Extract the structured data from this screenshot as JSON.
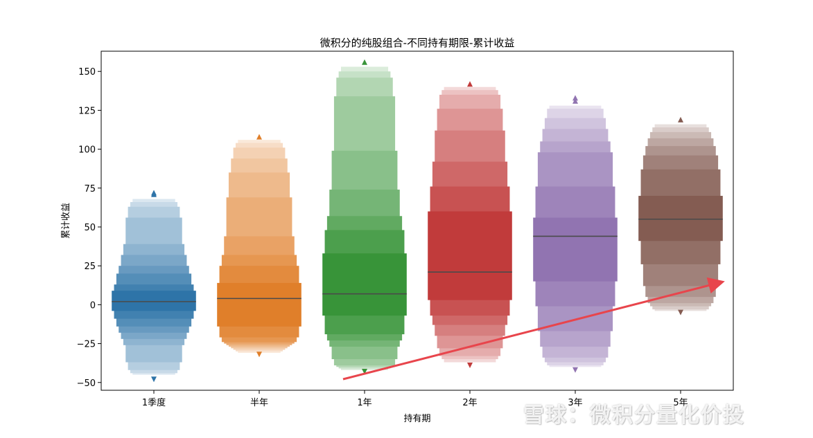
{
  "chart_data": {
    "type": "boxen",
    "title": "微积分的纯股组合-不同持有期限-累计收益",
    "xlabel": "持有期",
    "ylabel": "累计收益",
    "ylim": [
      -55,
      163
    ],
    "yticks": [
      -50,
      -25,
      0,
      25,
      50,
      75,
      100,
      125,
      150
    ],
    "grid": false,
    "categories": [
      "1季度",
      "半年",
      "1年",
      "2年",
      "3年",
      "5年"
    ],
    "colors": [
      "#2e74a8",
      "#e07f2a",
      "#389439",
      "#c13b3b",
      "#9174b1",
      "#845c52"
    ],
    "series": [
      {
        "category": "1季度",
        "median": 2,
        "levels": [
          [
            -4,
            9
          ],
          [
            -9,
            13
          ],
          [
            -14,
            20
          ],
          [
            -18,
            25
          ],
          [
            -22,
            32
          ],
          [
            -26,
            39
          ],
          [
            -37,
            56
          ],
          [
            -42,
            63
          ],
          [
            -44,
            66
          ],
          [
            -45,
            68
          ]
        ],
        "outliers": [
          72,
          71,
          -48
        ]
      },
      {
        "category": "半年",
        "median": 4,
        "levels": [
          [
            -14,
            14
          ],
          [
            -21,
            25
          ],
          [
            -24,
            32
          ],
          [
            -25,
            44
          ],
          [
            -26,
            69
          ],
          [
            -27,
            85
          ],
          [
            -28,
            94
          ],
          [
            -29,
            101
          ],
          [
            -30,
            104
          ],
          [
            -31,
            106
          ]
        ],
        "outliers": [
          108,
          -32
        ]
      },
      {
        "category": "1年",
        "median": 7,
        "levels": [
          [
            -7,
            33
          ],
          [
            -19,
            48
          ],
          [
            -23,
            57
          ],
          [
            -27,
            74
          ],
          [
            -35,
            99
          ],
          [
            -39,
            134
          ],
          [
            -40,
            146
          ],
          [
            -41,
            150
          ],
          [
            -42,
            153
          ]
        ],
        "outliers": [
          156,
          -43
        ]
      },
      {
        "category": "2年",
        "median": 21,
        "levels": [
          [
            3,
            60
          ],
          [
            -7,
            76
          ],
          [
            -13,
            92
          ],
          [
            -20,
            112
          ],
          [
            -28,
            126
          ],
          [
            -33,
            135
          ],
          [
            -35,
            138
          ],
          [
            -37,
            140
          ]
        ],
        "outliers": [
          142,
          -39
        ]
      },
      {
        "category": "3年",
        "median": 44,
        "levels": [
          [
            15,
            56
          ],
          [
            -1,
            76
          ],
          [
            -17,
            98
          ],
          [
            -27,
            105
          ],
          [
            -34,
            113
          ],
          [
            -37,
            120
          ],
          [
            -39,
            126
          ],
          [
            -40,
            128
          ]
        ],
        "outliers": [
          131,
          133,
          -42
        ]
      },
      {
        "category": "5年",
        "median": 55,
        "levels": [
          [
            41,
            70
          ],
          [
            26,
            87
          ],
          [
            12,
            96
          ],
          [
            5,
            102
          ],
          [
            1,
            107
          ],
          [
            -1,
            111
          ],
          [
            -3,
            114
          ],
          [
            -4,
            116
          ]
        ],
        "outliers": [
          119,
          -5
        ]
      }
    ]
  },
  "watermark": "雪球：微积分量化价投"
}
